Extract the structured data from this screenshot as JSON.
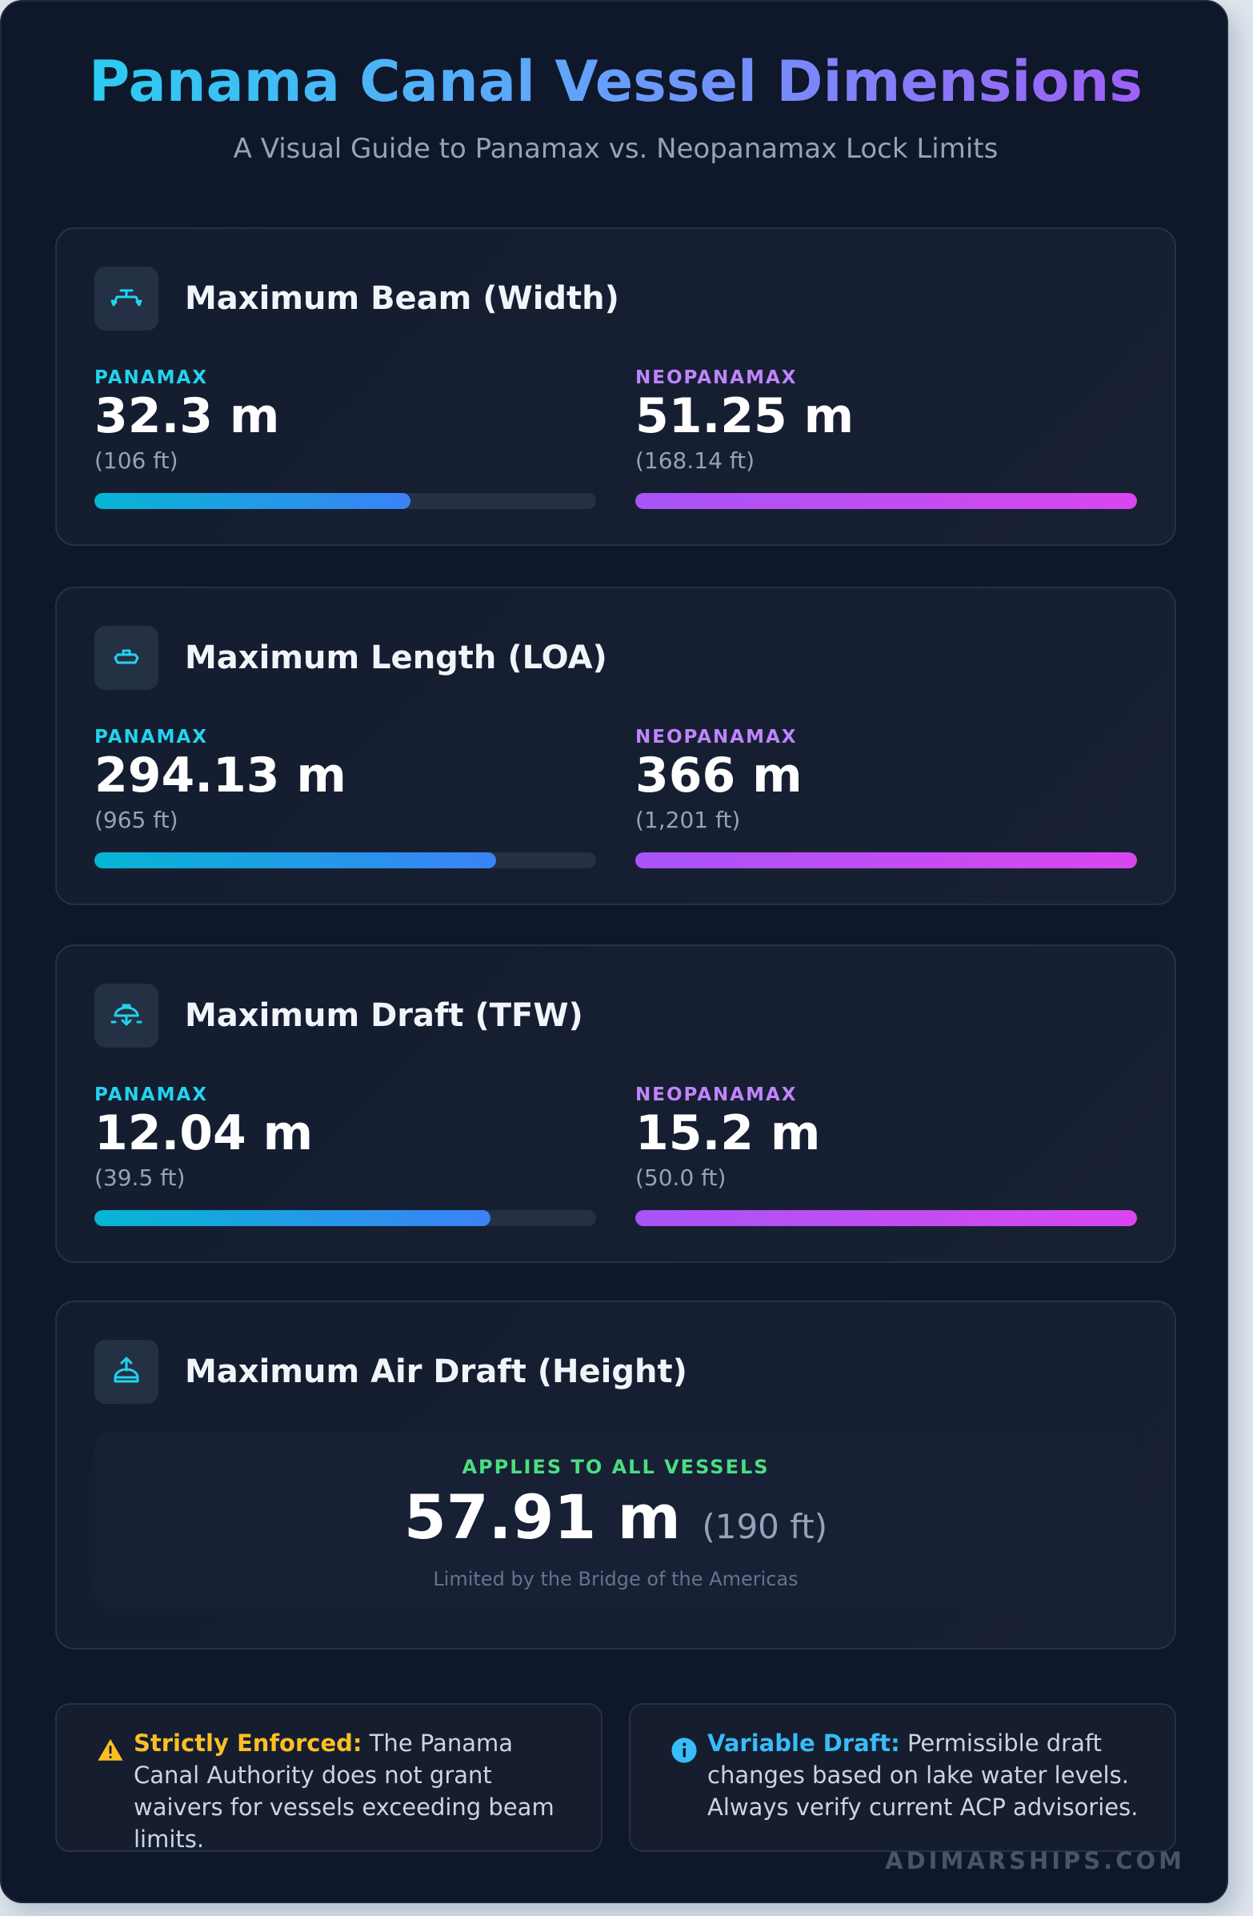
{
  "header": {
    "title": "Panama Canal Vessel Dimensions",
    "subtitle": "A Visual Guide to Panamax vs. Neopanamax Lock Limits"
  },
  "colors": {
    "panamax": "#22d3ee",
    "neopanamax": "#c084fc",
    "applies": "#4ade80",
    "warning": "#fbbf24",
    "info": "#38bdf8"
  },
  "sections": [
    {
      "icon": "ship-beam-icon",
      "title": "Maximum Beam (Width)",
      "panamax": {
        "label": "PANAMAX",
        "value": "32.3 m",
        "ft": "(106 ft)",
        "fill": 0.63
      },
      "neopanamax": {
        "label": "NEOPANAMAX",
        "value": "51.25 m",
        "ft": "(168.14 ft)",
        "fill": 1.0
      }
    },
    {
      "icon": "ship-length-icon",
      "title": "Maximum Length (LOA)",
      "panamax": {
        "label": "PANAMAX",
        "value": "294.13 m",
        "ft": "(965 ft)",
        "fill": 0.8
      },
      "neopanamax": {
        "label": "NEOPANAMAX",
        "value": "366 m",
        "ft": "(1,201 ft)",
        "fill": 1.0
      }
    },
    {
      "icon": "ship-draft-icon",
      "title": "Maximum Draft (TFW)",
      "panamax": {
        "label": "PANAMAX",
        "value": "12.04 m",
        "ft": "(39.5 ft)",
        "fill": 0.79
      },
      "neopanamax": {
        "label": "NEOPANAMAX",
        "value": "15.2 m",
        "ft": "(50.0 ft)",
        "fill": 1.0
      }
    }
  ],
  "air_draft": {
    "icon": "ship-height-icon",
    "title": "Maximum Air Draft (Height)",
    "label": "APPLIES TO ALL VESSELS",
    "value": "57.91 m",
    "ft": "(190 ft)",
    "note": "Limited by the Bridge of the Americas"
  },
  "notes": [
    {
      "icon": "warning-icon",
      "bold": "Strictly Enforced:",
      "text": " The Panama Canal Authority does not grant waivers for vessels exceeding beam limits."
    },
    {
      "icon": "info-icon",
      "bold": "Variable Draft:",
      "text": " Permissible draft changes based on lake water levels. Always verify current ACP advisories."
    }
  ],
  "watermark": "ADIMARSHIPS.COM"
}
